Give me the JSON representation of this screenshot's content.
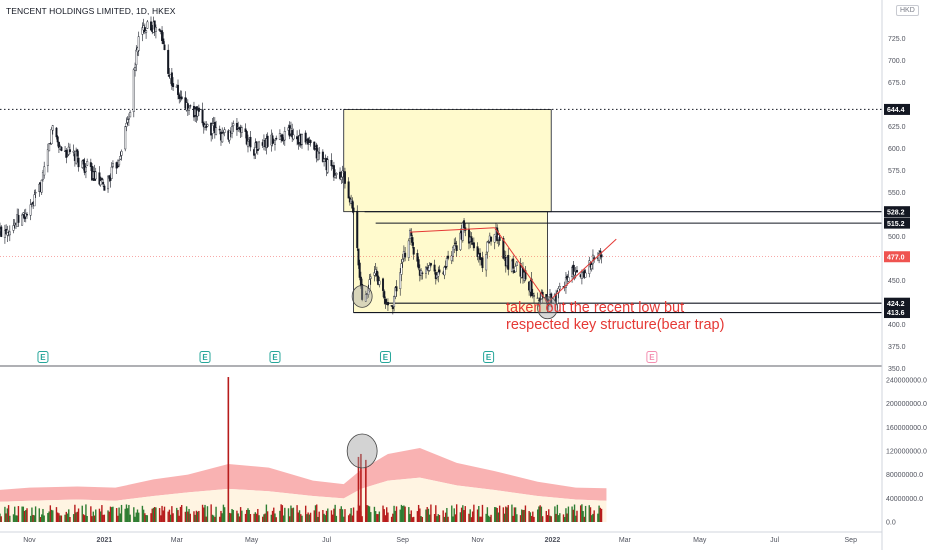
{
  "chart_data": {
    "type": "candlestick",
    "title": "TENCENT HOLDINGS LIMITED, 1D, HKEX",
    "currency": "HKD",
    "price_axis": {
      "ticks": [
        750.0,
        725.0,
        700.0,
        675.0,
        650.0,
        625.0,
        600.0,
        575.0,
        550.0,
        525.0,
        500.0,
        475.0,
        450.0,
        425.0,
        400.0,
        375.0,
        350.0
      ],
      "visible_tick_labels": [
        "725.0",
        "700.0",
        "675.0",
        "625.0",
        "600.0",
        "575.0",
        "550.0",
        "500.0",
        "450.0",
        "400.0",
        "375.0",
        "350.0"
      ],
      "ylim": [
        335,
        746
      ]
    },
    "time_axis": {
      "labels": [
        "Nov",
        "2021",
        "Mar",
        "May",
        "Jul",
        "Sep",
        "Nov",
        "2022",
        "Mar",
        "May",
        "Jul",
        "Sep"
      ],
      "label_dates": [
        "2020-11-01",
        "2021-01-01",
        "2021-03-01",
        "2021-05-01",
        "2021-07-01",
        "2021-09-01",
        "2021-11-01",
        "2022-01-01",
        "2022-03-01",
        "2022-05-01",
        "2022-07-01",
        "2022-09-01"
      ]
    },
    "price_labels": [
      {
        "value": 644.4,
        "text": "644.4",
        "style": "dark"
      },
      {
        "value": 528.2,
        "text": "528.2",
        "style": "dark"
      },
      {
        "value": 515.2,
        "text": "515.2",
        "style": "dark"
      },
      {
        "value": 477.0,
        "text": "477.0",
        "style": "last"
      },
      {
        "value": 424.2,
        "text": "424.2",
        "style": "dark"
      },
      {
        "value": 413.6,
        "text": "413.6",
        "style": "dark"
      }
    ],
    "price_path": [
      [
        "2020-10-08",
        505
      ],
      [
        "2020-10-20",
        515
      ],
      [
        "2020-11-02",
        530
      ],
      [
        "2020-11-12",
        565
      ],
      [
        "2020-11-20",
        625
      ],
      [
        "2020-11-26",
        600
      ],
      [
        "2020-12-08",
        590
      ],
      [
        "2020-12-20",
        575
      ],
      [
        "2020-12-31",
        555
      ],
      [
        "2021-01-12",
        585
      ],
      [
        "2021-01-22",
        645
      ],
      [
        "2021-01-28",
        720
      ],
      [
        "2021-02-05",
        745
      ],
      [
        "2021-02-16",
        730
      ],
      [
        "2021-02-24",
        680
      ],
      [
        "2021-03-04",
        655
      ],
      [
        "2021-03-15",
        640
      ],
      [
        "2021-03-26",
        625
      ],
      [
        "2021-04-08",
        615
      ],
      [
        "2021-04-20",
        625
      ],
      [
        "2021-05-03",
        600
      ],
      [
        "2021-05-20",
        610
      ],
      [
        "2021-06-01",
        620
      ],
      [
        "2021-06-15",
        605
      ],
      [
        "2021-06-30",
        585
      ],
      [
        "2021-07-08",
        570
      ],
      [
        "2021-07-15",
        568
      ],
      [
        "2021-07-23",
        525
      ],
      [
        "2021-07-28",
        455
      ],
      [
        "2021-07-30",
        430
      ],
      [
        "2021-08-04",
        445
      ],
      [
        "2021-08-10",
        460
      ],
      [
        "2021-08-18",
        425
      ],
      [
        "2021-08-23",
        420
      ],
      [
        "2021-09-01",
        470
      ],
      [
        "2021-09-07",
        505
      ],
      [
        "2021-09-14",
        460
      ],
      [
        "2021-09-22",
        470
      ],
      [
        "2021-10-01",
        455
      ],
      [
        "2021-10-12",
        480
      ],
      [
        "2021-10-20",
        508
      ],
      [
        "2021-10-28",
        490
      ],
      [
        "2021-11-05",
        470
      ],
      [
        "2021-11-15",
        510
      ],
      [
        "2021-11-25",
        470
      ],
      [
        "2021-12-05",
        465
      ],
      [
        "2021-12-15",
        440
      ],
      [
        "2021-12-28",
        425
      ],
      [
        "2022-01-04",
        430
      ],
      [
        "2022-01-14",
        460
      ],
      [
        "2022-01-24",
        455
      ],
      [
        "2022-02-01",
        470
      ],
      [
        "2022-02-10",
        480
      ]
    ],
    "volume_axis": {
      "ticks": [
        240000000,
        200000000,
        160000000,
        120000000,
        80000000,
        40000000,
        0
      ],
      "tick_labels": [
        "240000000.0",
        "200000000.0",
        "160000000.0",
        "120000000.0",
        "80000000.0",
        "40000000.0",
        "0.0"
      ],
      "ylim": [
        0,
        255000000
      ]
    },
    "volume_spikes": [
      {
        "date": "2021-04-12",
        "value": 245000000
      },
      {
        "date": "2021-07-27",
        "value": 110000000
      },
      {
        "date": "2021-07-29",
        "value": 115000000
      },
      {
        "date": "2021-08-02",
        "value": 105000000
      }
    ],
    "volume_band_upper": [
      [
        "2020-09-22",
        52000000
      ],
      [
        "2020-11-01",
        58000000
      ],
      [
        "2020-12-10",
        60000000
      ],
      [
        "2021-01-10",
        58000000
      ],
      [
        "2021-02-10",
        72000000
      ],
      [
        "2021-03-10",
        80000000
      ],
      [
        "2021-04-12",
        98000000
      ],
      [
        "2021-05-15",
        92000000
      ],
      [
        "2021-06-20",
        70000000
      ],
      [
        "2021-07-15",
        64000000
      ],
      [
        "2021-07-29",
        88000000
      ],
      [
        "2021-08-20",
        115000000
      ],
      [
        "2021-09-15",
        125000000
      ],
      [
        "2021-10-15",
        100000000
      ],
      [
        "2021-11-15",
        86000000
      ],
      [
        "2021-12-20",
        68000000
      ],
      [
        "2022-01-20",
        58000000
      ],
      [
        "2022-02-14",
        57000000
      ]
    ],
    "volume_band_lower": [
      [
        "2020-09-22",
        33000000
      ],
      [
        "2020-11-01",
        36000000
      ],
      [
        "2020-12-10",
        38000000
      ],
      [
        "2021-01-10",
        36000000
      ],
      [
        "2021-02-10",
        44000000
      ],
      [
        "2021-03-10",
        50000000
      ],
      [
        "2021-04-12",
        56000000
      ],
      [
        "2021-05-15",
        52000000
      ],
      [
        "2021-06-20",
        44000000
      ],
      [
        "2021-07-15",
        40000000
      ],
      [
        "2021-07-29",
        56000000
      ],
      [
        "2021-08-20",
        70000000
      ],
      [
        "2021-09-15",
        75000000
      ],
      [
        "2021-10-15",
        62000000
      ],
      [
        "2021-11-15",
        54000000
      ],
      [
        "2021-12-20",
        44000000
      ],
      [
        "2022-01-20",
        38000000
      ],
      [
        "2022-02-14",
        36000000
      ]
    ],
    "earnings_markers": [
      {
        "date": "2020-11-12",
        "label": "E",
        "status": "past"
      },
      {
        "date": "2021-03-24",
        "label": "E",
        "status": "past"
      },
      {
        "date": "2021-05-20",
        "label": "E",
        "status": "past"
      },
      {
        "date": "2021-08-18",
        "label": "E",
        "status": "past"
      },
      {
        "date": "2021-11-10",
        "label": "E",
        "status": "past"
      },
      {
        "date": "2022-03-23",
        "label": "E",
        "status": "upcoming"
      }
    ],
    "drawings": {
      "zone_upper": {
        "date_from": "2021-07-15",
        "date_to": "2021-12-31",
        "price_from": 528.2,
        "price_to": 644.4
      },
      "zone_lower": {
        "date_from": "2021-07-23",
        "date_to": "2021-12-28",
        "price_from": 413.6,
        "price_to": 528.2
      },
      "resistance_line": {
        "price": 644.4,
        "style": "dotted"
      },
      "horizontal_lines": [
        {
          "price": 528.2,
          "date_from": "2021-08-01"
        },
        {
          "price": 515.2,
          "date_from": "2021-08-10"
        },
        {
          "price": 424.2,
          "date_from": "2021-08-20"
        },
        {
          "price": 413.6,
          "date_from": "2021-07-23"
        }
      ],
      "trend_lines": [
        {
          "from": [
            "2021-09-07",
            505
          ],
          "to": [
            "2021-11-15",
            510
          ]
        },
        {
          "from": [
            "2021-11-15",
            510
          ],
          "to": [
            "2021-12-28",
            425
          ]
        },
        {
          "from": [
            "2021-12-28",
            425
          ],
          "to": [
            "2022-02-22",
            497
          ]
        }
      ],
      "circles": [
        {
          "date": "2021-07-30",
          "price": 432
        },
        {
          "date": "2021-12-28",
          "price": 419
        },
        {
          "date": "2021-07-30",
          "volume": 120000000,
          "panel": "volume"
        }
      ],
      "annotation": {
        "line1": "taken out the recent low but",
        "line2": "respected key structure(bear trap)",
        "color": "#e53935"
      }
    },
    "grid": false,
    "colors": {
      "up": "#26a69a",
      "down": "#ef5350",
      "candle": "#131722",
      "zone_fill": "#fff9c4",
      "volume_band": "#f8a5a5",
      "last_price": "#ef5350"
    }
  }
}
